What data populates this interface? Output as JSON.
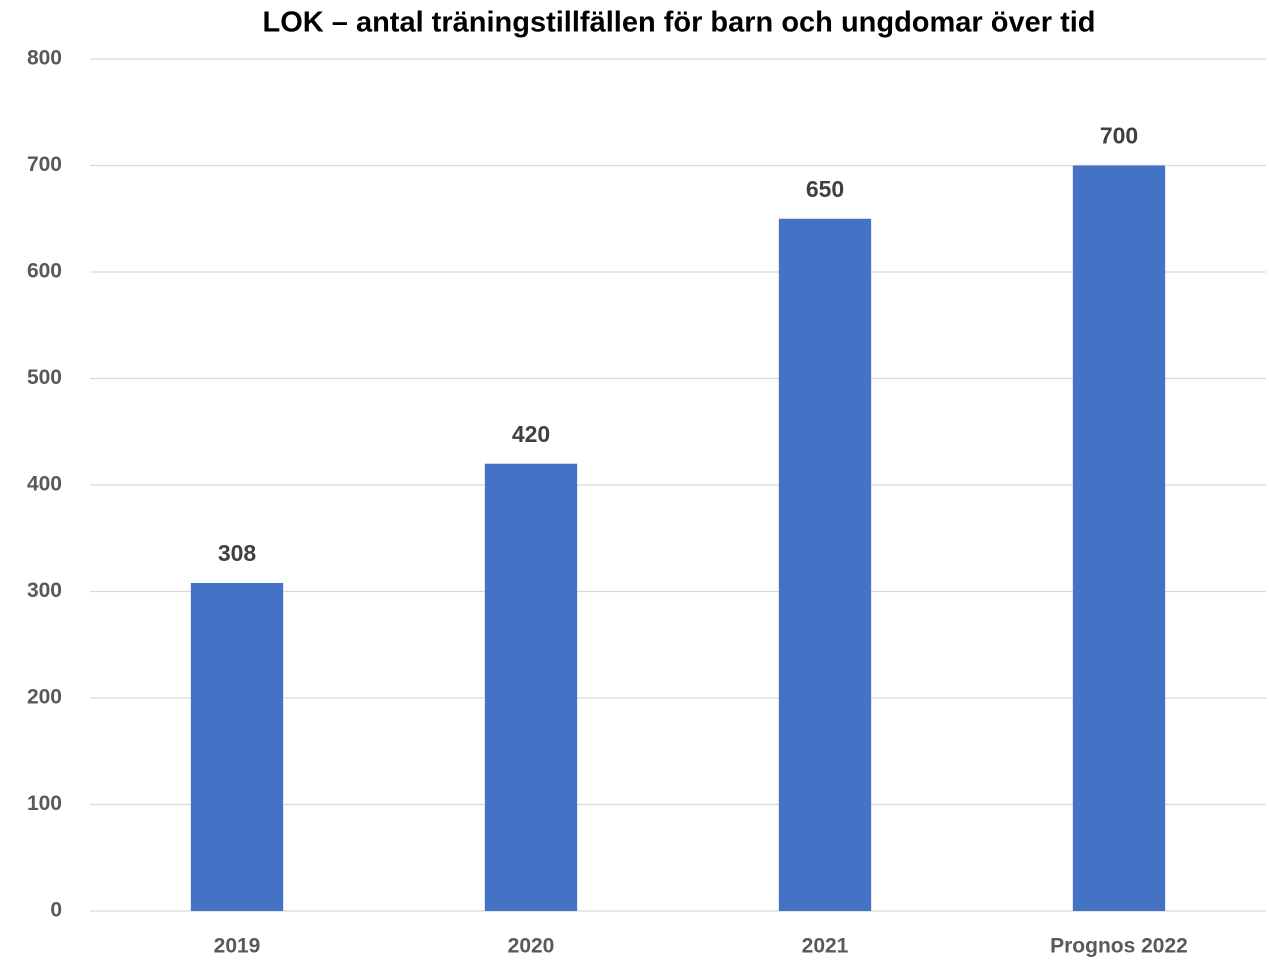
{
  "chart_data": {
    "type": "bar",
    "title": "LOK – antal träningstillfällen för barn och ungdomar över tid",
    "categories": [
      "2019",
      "2020",
      "2021",
      "Prognos 2022"
    ],
    "values": [
      308,
      420,
      650,
      700
    ],
    "color": "#4472c4",
    "ylim": [
      0,
      800
    ],
    "yticks": [
      0,
      100,
      200,
      300,
      400,
      500,
      600,
      700,
      800
    ],
    "grid": true
  }
}
